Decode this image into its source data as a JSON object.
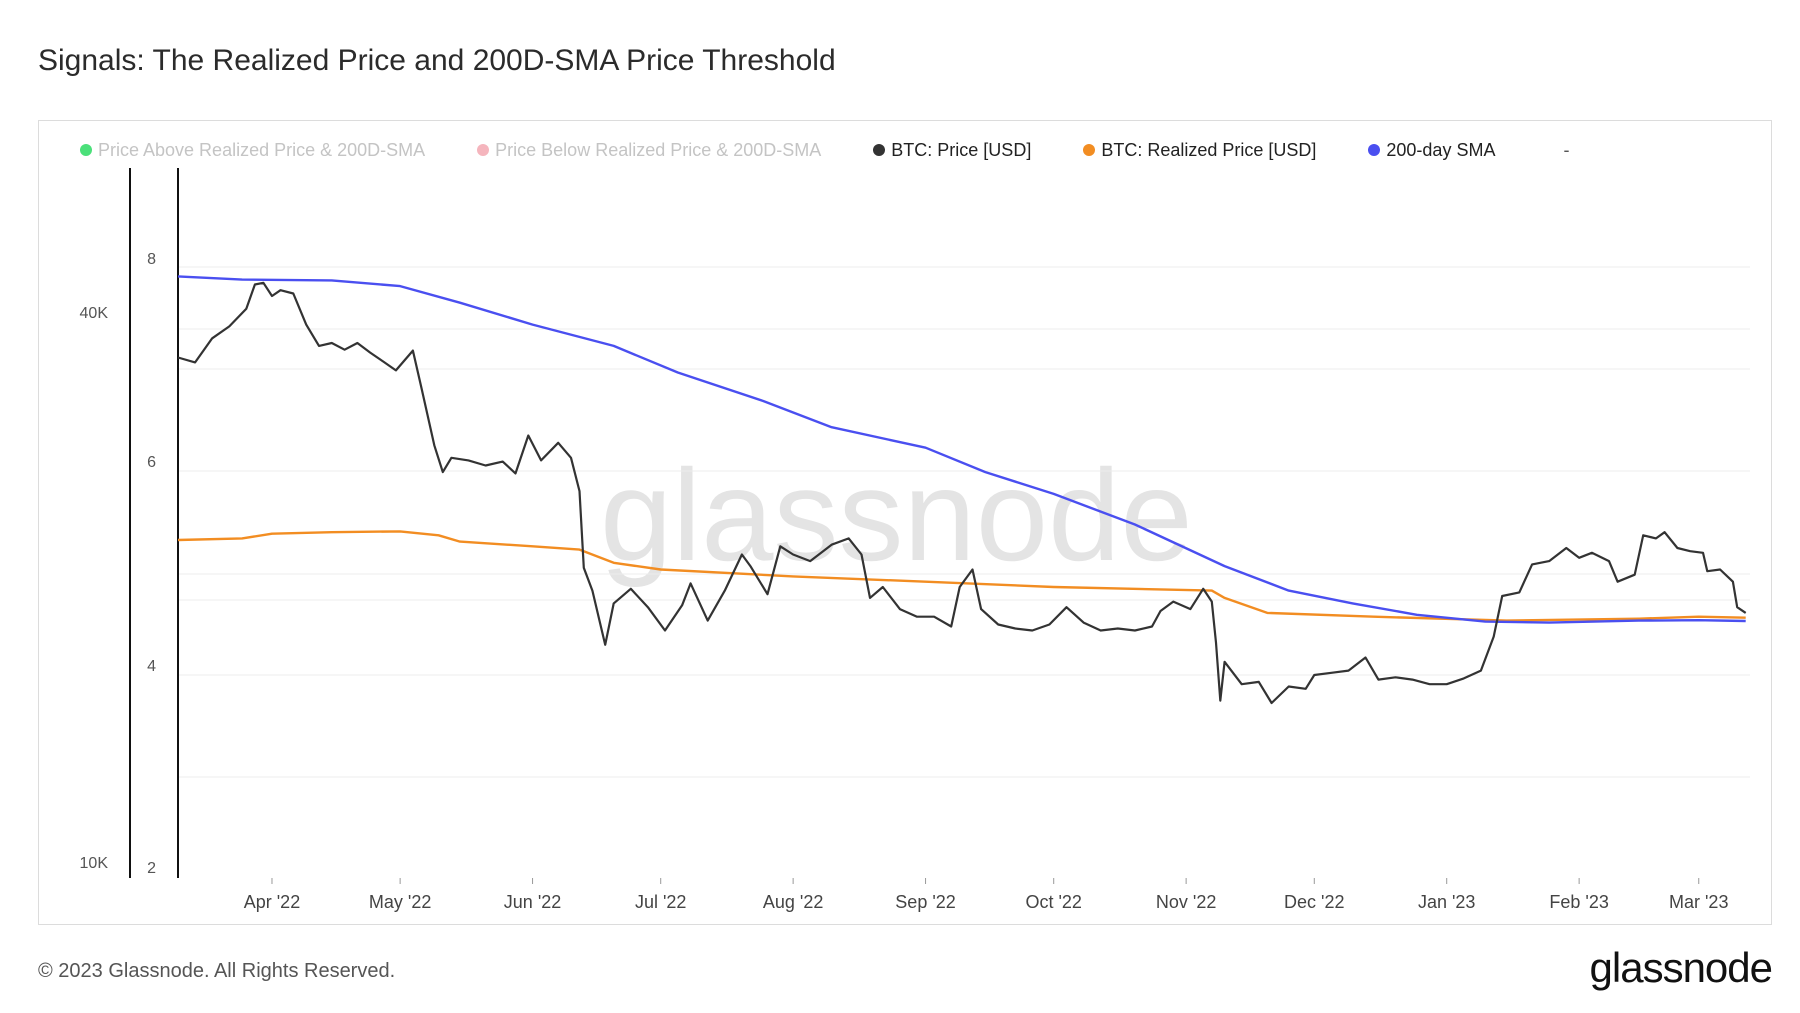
{
  "title": "Signals: The Realized Price and 200D-SMA Price Threshold",
  "legend": [
    {
      "label": "Price Above Realized Price & 200D-SMA",
      "color": "#4be07a",
      "faded": true
    },
    {
      "label": "Price Below Realized Price & 200D-SMA",
      "color": "#f5b5bd",
      "faded": true
    },
    {
      "label": "BTC: Price [USD]",
      "color": "#333333",
      "faded": false
    },
    {
      "label": "BTC: Realized Price [USD]",
      "color": "#f28d22",
      "faded": false
    },
    {
      "label": "200-day SMA",
      "color": "#4a4ff0",
      "faded": false
    }
  ],
  "legend_extra": "-",
  "watermark": "glassnode",
  "footer": "© 2023 Glassnode. All Rights Reserved.",
  "brand": "glassnode",
  "chart_data": {
    "type": "line",
    "y_scale": "log",
    "y_outer_ticks": [
      "40K",
      "10K"
    ],
    "y_inner_ticks": [
      "8",
      "6",
      "4",
      "2"
    ],
    "x_ticks": [
      "Apr '22",
      "May '22",
      "Jun '22",
      "Jul '22",
      "Aug '22",
      "Sep '22",
      "Oct '22",
      "Nov '22",
      "Dec '22",
      "Jan '23",
      "Feb '23",
      "Mar '23"
    ],
    "x_range": [
      "2022-03-10",
      "2023-03-13"
    ],
    "ylim": [
      10000,
      64000
    ],
    "grid": true,
    "legend_position": "top",
    "series": [
      {
        "name": "BTC: Price [USD]",
        "color": "#333333",
        "points": [
          [
            "2022-03-10",
            39000
          ],
          [
            "2022-03-14",
            38500
          ],
          [
            "2022-03-18",
            41000
          ],
          [
            "2022-03-22",
            42300
          ],
          [
            "2022-03-26",
            44300
          ],
          [
            "2022-03-28",
            47200
          ],
          [
            "2022-03-30",
            47400
          ],
          [
            "2022-04-01",
            45800
          ],
          [
            "2022-04-03",
            46500
          ],
          [
            "2022-04-06",
            46100
          ],
          [
            "2022-04-09",
            42500
          ],
          [
            "2022-04-12",
            40200
          ],
          [
            "2022-04-15",
            40500
          ],
          [
            "2022-04-18",
            39800
          ],
          [
            "2022-04-21",
            40500
          ],
          [
            "2022-04-24",
            39500
          ],
          [
            "2022-04-27",
            38600
          ],
          [
            "2022-04-30",
            37700
          ],
          [
            "2022-05-04",
            39700
          ],
          [
            "2022-05-06",
            36000
          ],
          [
            "2022-05-09",
            31000
          ],
          [
            "2022-05-11",
            28900
          ],
          [
            "2022-05-13",
            30000
          ],
          [
            "2022-05-17",
            29800
          ],
          [
            "2022-05-21",
            29400
          ],
          [
            "2022-05-25",
            29700
          ],
          [
            "2022-05-28",
            28800
          ],
          [
            "2022-05-31",
            31800
          ],
          [
            "2022-06-03",
            29800
          ],
          [
            "2022-06-07",
            31200
          ],
          [
            "2022-06-10",
            30000
          ],
          [
            "2022-06-12",
            27500
          ],
          [
            "2022-06-13",
            22500
          ],
          [
            "2022-06-15",
            21200
          ],
          [
            "2022-06-18",
            18400
          ],
          [
            "2022-06-20",
            20500
          ],
          [
            "2022-06-24",
            21300
          ],
          [
            "2022-06-28",
            20300
          ],
          [
            "2022-07-02",
            19100
          ],
          [
            "2022-07-06",
            20400
          ],
          [
            "2022-07-08",
            21600
          ],
          [
            "2022-07-12",
            19600
          ],
          [
            "2022-07-16",
            21200
          ],
          [
            "2022-07-20",
            23300
          ],
          [
            "2022-07-22",
            22600
          ],
          [
            "2022-07-26",
            21000
          ],
          [
            "2022-07-29",
            23800
          ],
          [
            "2022-08-01",
            23300
          ],
          [
            "2022-08-05",
            22900
          ],
          [
            "2022-08-10",
            23900
          ],
          [
            "2022-08-14",
            24300
          ],
          [
            "2022-08-17",
            23300
          ],
          [
            "2022-08-19",
            20800
          ],
          [
            "2022-08-22",
            21400
          ],
          [
            "2022-08-26",
            20200
          ],
          [
            "2022-08-30",
            19800
          ],
          [
            "2022-09-03",
            19800
          ],
          [
            "2022-09-07",
            19300
          ],
          [
            "2022-09-09",
            21400
          ],
          [
            "2022-09-12",
            22400
          ],
          [
            "2022-09-14",
            20200
          ],
          [
            "2022-09-18",
            19400
          ],
          [
            "2022-09-22",
            19200
          ],
          [
            "2022-09-26",
            19100
          ],
          [
            "2022-09-30",
            19400
          ],
          [
            "2022-10-04",
            20300
          ],
          [
            "2022-10-08",
            19500
          ],
          [
            "2022-10-12",
            19100
          ],
          [
            "2022-10-16",
            19200
          ],
          [
            "2022-10-20",
            19100
          ],
          [
            "2022-10-24",
            19300
          ],
          [
            "2022-10-26",
            20100
          ],
          [
            "2022-10-29",
            20600
          ],
          [
            "2022-11-02",
            20200
          ],
          [
            "2022-11-05",
            21300
          ],
          [
            "2022-11-07",
            20600
          ],
          [
            "2022-11-08",
            18500
          ],
          [
            "2022-11-09",
            15900
          ],
          [
            "2022-11-10",
            17600
          ],
          [
            "2022-11-14",
            16600
          ],
          [
            "2022-11-18",
            16700
          ],
          [
            "2022-11-21",
            15800
          ],
          [
            "2022-11-25",
            16500
          ],
          [
            "2022-11-29",
            16400
          ],
          [
            "2022-12-01",
            17000
          ],
          [
            "2022-12-05",
            17100
          ],
          [
            "2022-12-09",
            17200
          ],
          [
            "2022-12-13",
            17800
          ],
          [
            "2022-12-16",
            16800
          ],
          [
            "2022-12-20",
            16900
          ],
          [
            "2022-12-24",
            16800
          ],
          [
            "2022-12-28",
            16600
          ],
          [
            "2023-01-01",
            16600
          ],
          [
            "2023-01-05",
            16850
          ],
          [
            "2023-01-09",
            17200
          ],
          [
            "2023-01-12",
            18800
          ],
          [
            "2023-01-14",
            20900
          ],
          [
            "2023-01-18",
            21100
          ],
          [
            "2023-01-21",
            22700
          ],
          [
            "2023-01-25",
            22900
          ],
          [
            "2023-01-29",
            23700
          ],
          [
            "2023-02-01",
            23100
          ],
          [
            "2023-02-04",
            23400
          ],
          [
            "2023-02-08",
            22900
          ],
          [
            "2023-02-10",
            21700
          ],
          [
            "2023-02-14",
            22100
          ],
          [
            "2023-02-16",
            24500
          ],
          [
            "2023-02-19",
            24300
          ],
          [
            "2023-02-21",
            24700
          ],
          [
            "2023-02-24",
            23700
          ],
          [
            "2023-02-27",
            23500
          ],
          [
            "2023-03-02",
            23400
          ],
          [
            "2023-03-03",
            22300
          ],
          [
            "2023-03-06",
            22400
          ],
          [
            "2023-03-09",
            21700
          ],
          [
            "2023-03-10",
            20300
          ],
          [
            "2023-03-12",
            20000
          ]
        ]
      },
      {
        "name": "BTC: Realized Price [USD]",
        "color": "#f28d22",
        "points": [
          [
            "2022-03-10",
            24200
          ],
          [
            "2022-03-25",
            24300
          ],
          [
            "2022-04-01",
            24600
          ],
          [
            "2022-04-15",
            24700
          ],
          [
            "2022-05-01",
            24750
          ],
          [
            "2022-05-10",
            24500
          ],
          [
            "2022-05-15",
            24100
          ],
          [
            "2022-06-01",
            23800
          ],
          [
            "2022-06-12",
            23600
          ],
          [
            "2022-06-20",
            22800
          ],
          [
            "2022-07-01",
            22400
          ],
          [
            "2022-08-01",
            22000
          ],
          [
            "2022-09-01",
            21700
          ],
          [
            "2022-10-01",
            21400
          ],
          [
            "2022-11-07",
            21200
          ],
          [
            "2022-11-10",
            20800
          ],
          [
            "2022-11-20",
            20000
          ],
          [
            "2022-12-15",
            19800
          ],
          [
            "2023-01-15",
            19600
          ],
          [
            "2023-02-15",
            19700
          ],
          [
            "2023-03-01",
            19800
          ],
          [
            "2023-03-12",
            19750
          ]
        ]
      },
      {
        "name": "200-day SMA",
        "color": "#4a4ff0",
        "points": [
          [
            "2022-03-10",
            48200
          ],
          [
            "2022-03-25",
            47800
          ],
          [
            "2022-04-15",
            47700
          ],
          [
            "2022-05-01",
            47000
          ],
          [
            "2022-05-15",
            45000
          ],
          [
            "2022-06-01",
            42500
          ],
          [
            "2022-06-20",
            40200
          ],
          [
            "2022-07-05",
            37500
          ],
          [
            "2022-07-25",
            34800
          ],
          [
            "2022-08-10",
            32500
          ],
          [
            "2022-09-01",
            30800
          ],
          [
            "2022-09-15",
            28900
          ],
          [
            "2022-10-01",
            27300
          ],
          [
            "2022-10-20",
            25200
          ],
          [
            "2022-11-10",
            22600
          ],
          [
            "2022-11-25",
            21200
          ],
          [
            "2022-12-10",
            20500
          ],
          [
            "2022-12-25",
            19900
          ],
          [
            "2023-01-10",
            19550
          ],
          [
            "2023-01-25",
            19500
          ],
          [
            "2023-02-15",
            19600
          ],
          [
            "2023-03-01",
            19620
          ],
          [
            "2023-03-12",
            19580
          ]
        ]
      }
    ]
  }
}
